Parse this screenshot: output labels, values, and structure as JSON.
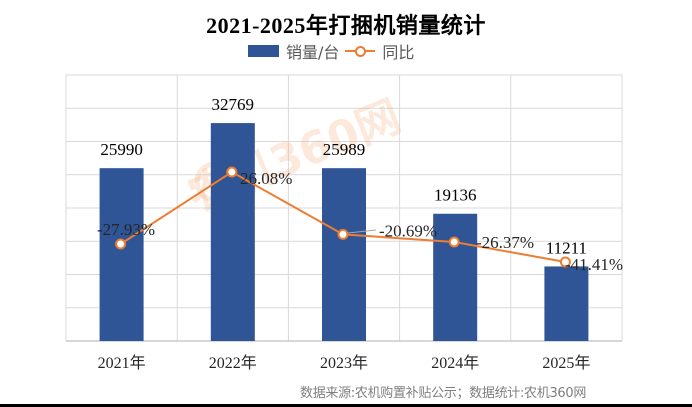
{
  "chart_data": {
    "type": "bar",
    "title": "2021-2025年打捆机销量统计",
    "categories": [
      "2021年",
      "2022年",
      "2023年",
      "2024年",
      "2025年"
    ],
    "series": [
      {
        "name": "销量/台",
        "type": "bar",
        "color": "#2F5597",
        "values": [
          25990,
          32769,
          25989,
          19136,
          11211
        ],
        "labels": [
          "25990",
          "32769",
          "25989",
          "19136",
          "11211"
        ]
      },
      {
        "name": "同比",
        "type": "line",
        "color": "#ED7D31",
        "values": [
          -27.93,
          26.08,
          -20.69,
          -26.37,
          -41.41
        ],
        "labels": [
          "-27.93%",
          "26.08%",
          "-20.69%",
          "-26.37%",
          "-41.41%"
        ]
      }
    ],
    "xlabel": "",
    "ylabel": "",
    "ylim": [
      0,
      40000
    ],
    "grid": true,
    "legend_position": "top",
    "axes_visible": false
  },
  "legend": {
    "bar_label": "销量/台",
    "line_label": "同比"
  },
  "watermark": "农机360网",
  "source_note": "数据来源:农机购置补贴公示；数据统计:农机360网"
}
